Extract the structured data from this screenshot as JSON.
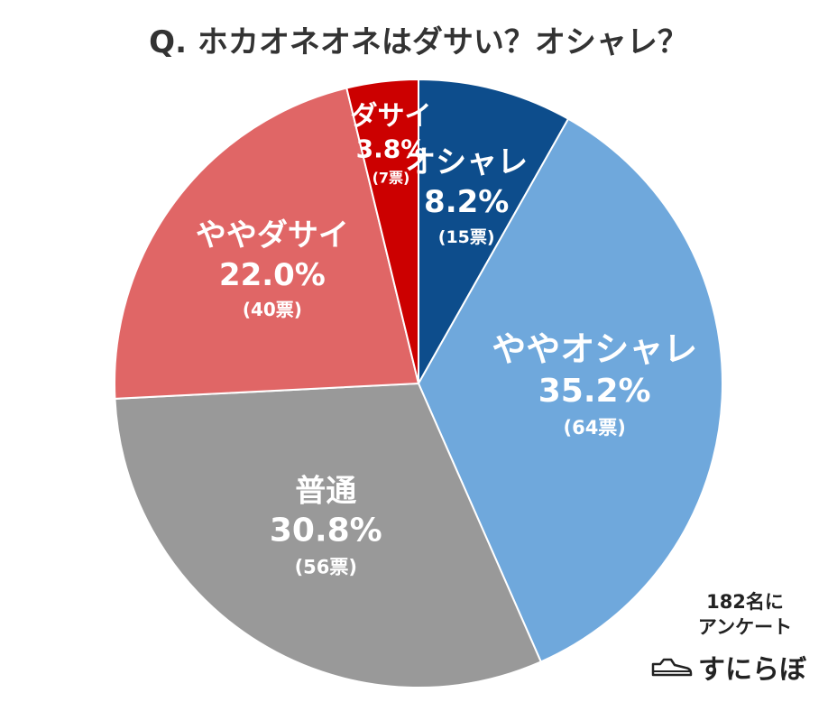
{
  "chart_data": {
    "type": "pie",
    "title": "Q. ホカオネオネはダサい？オシャレ？",
    "slices": [
      {
        "label": "オシャレ",
        "percent": "8.2%",
        "value": 8.2,
        "votes": "(15票)",
        "color": "#0d4d8c"
      },
      {
        "label": "ややオシャレ",
        "percent": "35.2%",
        "value": 35.2,
        "votes": "(64票)",
        "color": "#6fa8dc"
      },
      {
        "label": "普通",
        "percent": "30.8%",
        "value": 30.8,
        "votes": "(56票)",
        "color": "#999999"
      },
      {
        "label": "ややダサイ",
        "percent": "22.0%",
        "value": 22.0,
        "votes": "(40票)",
        "color": "#e06666"
      },
      {
        "label": "ダサイ",
        "percent": "3.8%",
        "value": 3.8,
        "votes": "(7票)",
        "color": "#cc0000"
      }
    ]
  },
  "footer": {
    "respondents_line1": "182名に",
    "respondents_line2": "アンケート",
    "brand": "すにらぼ",
    "brand_icon": "sneaker-icon"
  }
}
